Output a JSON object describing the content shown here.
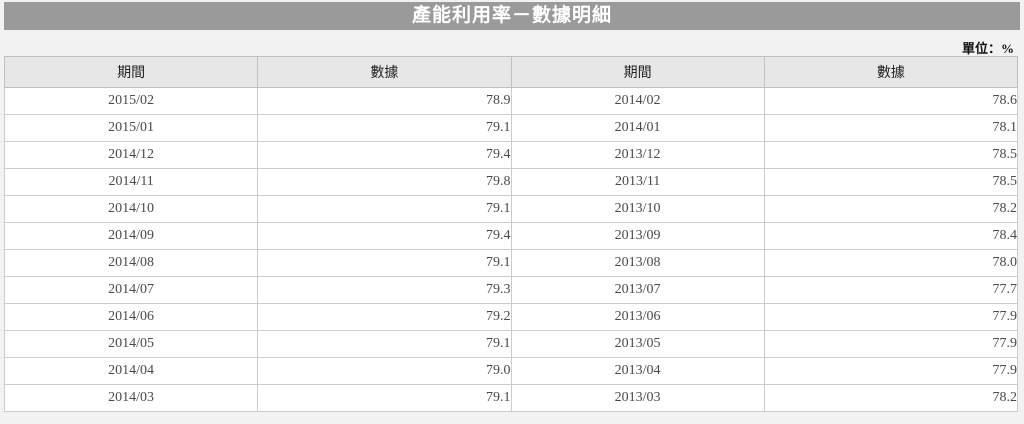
{
  "title_bar": {
    "title": "產能利用率－數據明細"
  },
  "unit_label": "單位：%",
  "colors": {
    "title_bar_bg": "#9a9a9a",
    "title_text": "#ffffff",
    "header_bg": "#e7e7e7",
    "page_bg": "#f2f2f2",
    "table_border": "#c0c0c0",
    "cell_text": "#4a4a4a"
  },
  "table": {
    "headers": [
      "期間",
      "數據",
      "期間",
      "數據"
    ],
    "rows": [
      [
        "2015/02",
        "78.9",
        "2014/02",
        "78.6"
      ],
      [
        "2015/01",
        "79.1",
        "2014/01",
        "78.1"
      ],
      [
        "2014/12",
        "79.4",
        "2013/12",
        "78.5"
      ],
      [
        "2014/11",
        "79.8",
        "2013/11",
        "78.5"
      ],
      [
        "2014/10",
        "79.1",
        "2013/10",
        "78.2"
      ],
      [
        "2014/09",
        "79.4",
        "2013/09",
        "78.4"
      ],
      [
        "2014/08",
        "79.1",
        "2013/08",
        "78.0"
      ],
      [
        "2014/07",
        "79.3",
        "2013/07",
        "77.7"
      ],
      [
        "2014/06",
        "79.2",
        "2013/06",
        "77.9"
      ],
      [
        "2014/05",
        "79.1",
        "2013/05",
        "77.9"
      ],
      [
        "2014/04",
        "79.0",
        "2013/04",
        "77.9"
      ],
      [
        "2014/03",
        "79.1",
        "2013/03",
        "78.2"
      ]
    ]
  },
  "chart_data": {
    "type": "table",
    "title": "產能利用率－數據明細",
    "unit": "%",
    "columns": [
      "期間",
      "數據",
      "期間",
      "數據"
    ],
    "series": [
      {
        "name": "產能利用率",
        "x": [
          "2013/03",
          "2013/04",
          "2013/05",
          "2013/06",
          "2013/07",
          "2013/08",
          "2013/09",
          "2013/10",
          "2013/11",
          "2013/12",
          "2014/01",
          "2014/02",
          "2014/03",
          "2014/04",
          "2014/05",
          "2014/06",
          "2014/07",
          "2014/08",
          "2014/09",
          "2014/10",
          "2014/11",
          "2014/12",
          "2015/01",
          "2015/02"
        ],
        "values": [
          78.2,
          77.9,
          77.9,
          77.9,
          77.7,
          78.0,
          78.4,
          78.2,
          78.5,
          78.5,
          78.1,
          78.6,
          79.1,
          79.0,
          79.1,
          79.2,
          79.3,
          79.1,
          79.4,
          79.1,
          79.8,
          79.4,
          79.1,
          78.9
        ]
      }
    ]
  }
}
